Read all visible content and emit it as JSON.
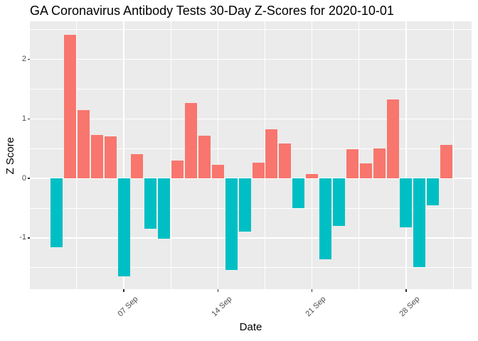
{
  "title": "GA Coronavirus Antibody Tests 30-Day Z-Scores for 2020-10-01",
  "chart_data": {
    "type": "bar",
    "title": "GA Coronavirus Antibody Tests 30-Day Z-Scores for 2020-10-01",
    "xlabel": "Date",
    "ylabel": "Z Score",
    "x": [
      "2020-09-02",
      "2020-09-03",
      "2020-09-04",
      "2020-09-05",
      "2020-09-06",
      "2020-09-07",
      "2020-09-08",
      "2020-09-09",
      "2020-09-10",
      "2020-09-11",
      "2020-09-12",
      "2020-09-13",
      "2020-09-14",
      "2020-09-15",
      "2020-09-16",
      "2020-09-17",
      "2020-09-18",
      "2020-09-19",
      "2020-09-20",
      "2020-09-21",
      "2020-09-22",
      "2020-09-23",
      "2020-09-24",
      "2020-09-25",
      "2020-09-26",
      "2020-09-27",
      "2020-09-28",
      "2020-09-29",
      "2020-09-30",
      "2020-10-01"
    ],
    "values": [
      -1.15,
      2.41,
      1.15,
      0.73,
      0.71,
      -1.65,
      0.41,
      -0.85,
      -1.01,
      0.3,
      1.27,
      0.72,
      0.23,
      -1.54,
      -0.89,
      0.26,
      0.83,
      0.59,
      -0.5,
      0.07,
      -1.36,
      -0.8,
      0.49,
      0.25,
      0.5,
      1.33,
      -0.82,
      -1.49,
      -0.45,
      0.56
    ],
    "bar_colors": {
      "positive": "#F8766D",
      "negative": "#00BFC4"
    },
    "ylim": [
      -1.86,
      2.64
    ],
    "yticks": [
      -1,
      0,
      1,
      2
    ],
    "yticks_minor": [
      -1.5,
      -0.5,
      0.5,
      1.5,
      2.5
    ],
    "xticks": [
      {
        "index": 5,
        "label": "07 Sep"
      },
      {
        "index": 12,
        "label": "14 Sep"
      },
      {
        "index": 19,
        "label": "21 Sep"
      },
      {
        "index": 26,
        "label": "28 Sep"
      }
    ],
    "xticks_minor_index": [
      1.5,
      8.5,
      15.5,
      22.5,
      29.5
    ],
    "grid": true,
    "legend": "none",
    "theme": {
      "panel_bg": "#EBEBEB",
      "grid_color": "#FFFFFF",
      "axis_text_color": "#4D4D4D",
      "tick_mark_color": "#333333",
      "title_color": "#000000"
    }
  }
}
